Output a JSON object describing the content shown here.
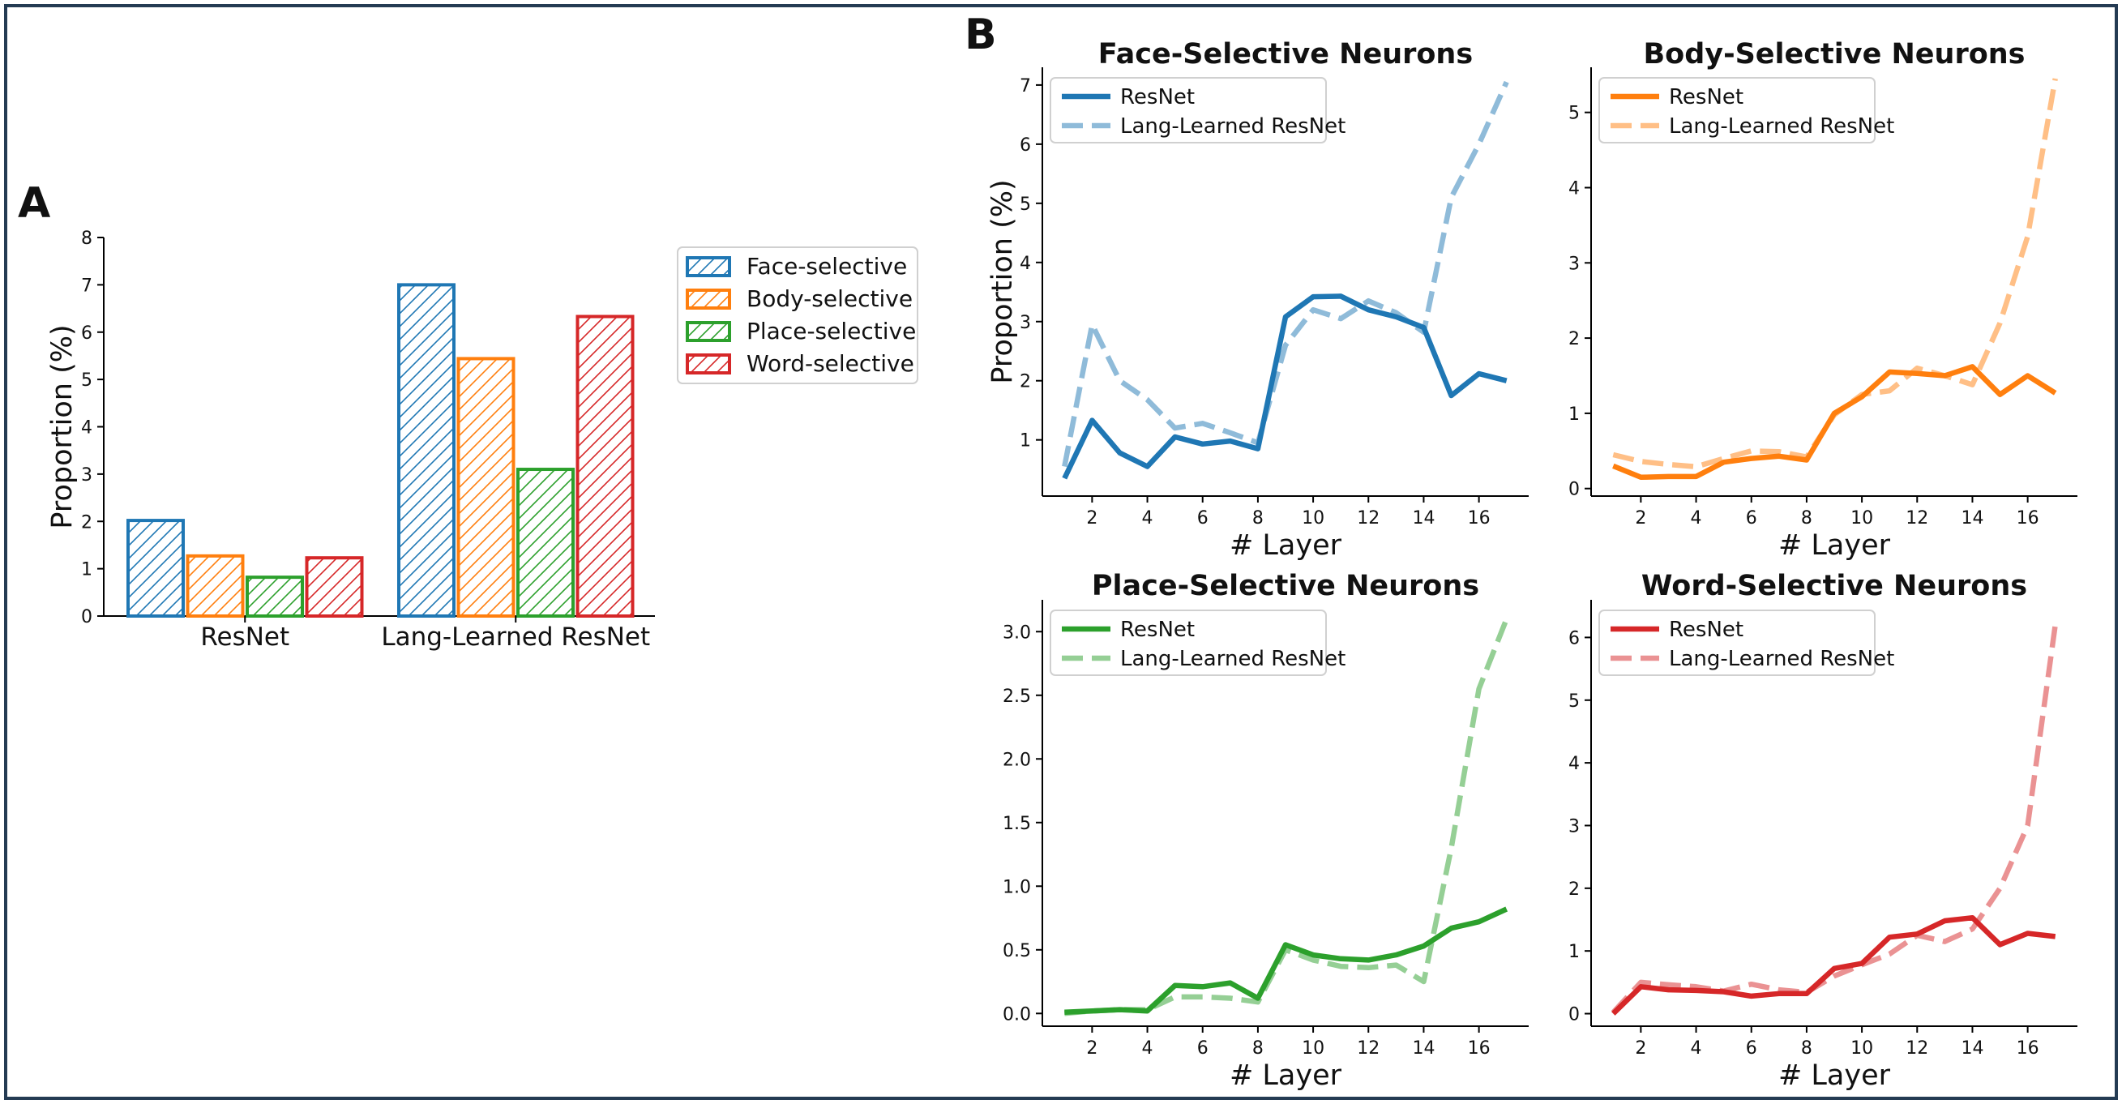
{
  "colors": {
    "face": "#1f77b4",
    "face_light": "#8fbbd9",
    "body": "#ff7f0e",
    "body_light": "#ffbf86",
    "place": "#2ca02c",
    "place_light": "#95cf95",
    "word": "#d62728",
    "word_light": "#ea9293",
    "frame": "#243b53"
  },
  "panel_a": {
    "letter": "A"
  },
  "panel_b": {
    "letter": "B"
  },
  "chart_data": [
    {
      "id": "A",
      "type": "bar",
      "categories": [
        "ResNet",
        "Lang-Learned ResNet"
      ],
      "series": [
        {
          "name": "Face-selective",
          "color_key": "face",
          "values": [
            2.02,
            7.0
          ]
        },
        {
          "name": "Body-selective",
          "color_key": "body",
          "values": [
            1.27,
            5.44
          ]
        },
        {
          "name": "Place-selective",
          "color_key": "place",
          "values": [
            0.82,
            3.1
          ]
        },
        {
          "name": "Word-selective",
          "color_key": "word",
          "values": [
            1.23,
            6.33
          ]
        }
      ],
      "title": "",
      "xlabel": "",
      "ylabel": "Proportion (%)",
      "ylim": [
        0,
        8
      ],
      "yticks": [
        0,
        1,
        2,
        3,
        4,
        5,
        6,
        7,
        8
      ],
      "legend": "right",
      "grid": false,
      "hatch": "diagonal"
    },
    {
      "id": "B1",
      "type": "line",
      "title": "Face-Selective Neurons",
      "xlabel": "# Layer",
      "ylabel": "Proportion (%)",
      "x": [
        1,
        2,
        3,
        4,
        5,
        6,
        7,
        8,
        9,
        10,
        11,
        12,
        13,
        14,
        15,
        16,
        17
      ],
      "xlim": [
        0.2,
        17.8
      ],
      "xticks": [
        2,
        4,
        6,
        8,
        10,
        12,
        14,
        16
      ],
      "ylim": [
        0.05,
        7.3
      ],
      "yticks": [
        1,
        2,
        3,
        4,
        5,
        6,
        7
      ],
      "tick_labels": [
        "1",
        "2",
        "3",
        "4",
        "5",
        "6",
        "7"
      ],
      "legend": "upper-left",
      "series": [
        {
          "name": "ResNet",
          "style": "solid",
          "color_key": "face",
          "values": [
            0.35,
            1.33,
            0.78,
            0.55,
            1.05,
            0.93,
            0.98,
            0.85,
            3.08,
            3.42,
            3.43,
            3.2,
            3.08,
            2.9,
            1.75,
            2.12,
            2.0
          ]
        },
        {
          "name": "Lang-Learned ResNet",
          "style": "dashed",
          "color_key": "face_light",
          "values": [
            0.55,
            2.95,
            2.0,
            1.68,
            1.2,
            1.28,
            1.12,
            0.95,
            2.6,
            3.2,
            3.05,
            3.35,
            3.15,
            2.82,
            5.1,
            6.0,
            7.05
          ]
        }
      ]
    },
    {
      "id": "B2",
      "type": "line",
      "title": "Body-Selective Neurons",
      "xlabel": "# Layer",
      "ylabel": "",
      "x": [
        1,
        2,
        3,
        4,
        5,
        6,
        7,
        8,
        9,
        10,
        11,
        12,
        13,
        14,
        15,
        16,
        17
      ],
      "xlim": [
        0.2,
        17.8
      ],
      "xticks": [
        2,
        4,
        6,
        8,
        10,
        12,
        14,
        16
      ],
      "ylim": [
        -0.1,
        5.6
      ],
      "yticks": [
        0,
        1,
        2,
        3,
        4,
        5
      ],
      "tick_labels": [
        "0",
        "1",
        "2",
        "3",
        "4",
        "5"
      ],
      "legend": "upper-left",
      "series": [
        {
          "name": "ResNet",
          "style": "solid",
          "color_key": "body",
          "values": [
            0.3,
            0.15,
            0.16,
            0.16,
            0.35,
            0.4,
            0.43,
            0.38,
            1.0,
            1.22,
            1.55,
            1.53,
            1.5,
            1.62,
            1.25,
            1.5,
            1.27
          ]
        },
        {
          "name": "Lang-Learned ResNet",
          "style": "dashed",
          "color_key": "body_light",
          "values": [
            0.45,
            0.36,
            0.32,
            0.29,
            0.4,
            0.5,
            0.49,
            0.42,
            0.98,
            1.25,
            1.3,
            1.6,
            1.5,
            1.38,
            2.2,
            3.35,
            5.45
          ]
        }
      ]
    },
    {
      "id": "B3",
      "type": "line",
      "title": "Place-Selective Neurons",
      "xlabel": "# Layer",
      "ylabel": "",
      "x": [
        1,
        2,
        3,
        4,
        5,
        6,
        7,
        8,
        9,
        10,
        11,
        12,
        13,
        14,
        15,
        16,
        17
      ],
      "xlim": [
        0.2,
        17.8
      ],
      "xticks": [
        2,
        4,
        6,
        8,
        10,
        12,
        14,
        16
      ],
      "ylim": [
        -0.1,
        3.25
      ],
      "yticks": [
        0,
        0.5,
        1.0,
        1.5,
        2.0,
        2.5,
        3.0
      ],
      "tick_labels": [
        "0.0",
        "0.5",
        "1.0",
        "1.5",
        "2.0",
        "2.5",
        "3.0"
      ],
      "legend": "upper-left",
      "series": [
        {
          "name": "ResNet",
          "style": "solid",
          "color_key": "place",
          "values": [
            0.01,
            0.02,
            0.03,
            0.02,
            0.22,
            0.21,
            0.24,
            0.12,
            0.54,
            0.46,
            0.43,
            0.42,
            0.46,
            0.53,
            0.67,
            0.72,
            0.82
          ]
        },
        {
          "name": "Lang-Learned ResNet",
          "style": "dashed",
          "color_key": "place_light",
          "values": [
            0.0,
            0.02,
            0.03,
            0.03,
            0.13,
            0.13,
            0.12,
            0.09,
            0.5,
            0.42,
            0.37,
            0.36,
            0.38,
            0.25,
            1.3,
            2.55,
            3.1
          ]
        }
      ]
    },
    {
      "id": "B4",
      "type": "line",
      "title": "Word-Selective Neurons",
      "xlabel": "# Layer",
      "ylabel": "",
      "x": [
        1,
        2,
        3,
        4,
        5,
        6,
        7,
        8,
        9,
        10,
        11,
        12,
        13,
        14,
        15,
        16,
        17
      ],
      "xlim": [
        0.2,
        17.8
      ],
      "xticks": [
        2,
        4,
        6,
        8,
        10,
        12,
        14,
        16
      ],
      "ylim": [
        -0.2,
        6.6
      ],
      "yticks": [
        0,
        1,
        2,
        3,
        4,
        5,
        6
      ],
      "tick_labels": [
        "0",
        "1",
        "2",
        "3",
        "4",
        "5",
        "6"
      ],
      "legend": "upper-left",
      "series": [
        {
          "name": "ResNet",
          "style": "solid",
          "color_key": "word",
          "values": [
            0.0,
            0.43,
            0.38,
            0.37,
            0.35,
            0.28,
            0.32,
            0.32,
            0.72,
            0.8,
            1.22,
            1.27,
            1.48,
            1.53,
            1.1,
            1.28,
            1.23
          ]
        },
        {
          "name": "Lang-Learned ResNet",
          "style": "dashed",
          "color_key": "word_light",
          "values": [
            0.02,
            0.5,
            0.46,
            0.43,
            0.36,
            0.47,
            0.38,
            0.34,
            0.6,
            0.78,
            0.95,
            1.25,
            1.15,
            1.35,
            2.0,
            3.0,
            6.2
          ]
        }
      ]
    }
  ]
}
